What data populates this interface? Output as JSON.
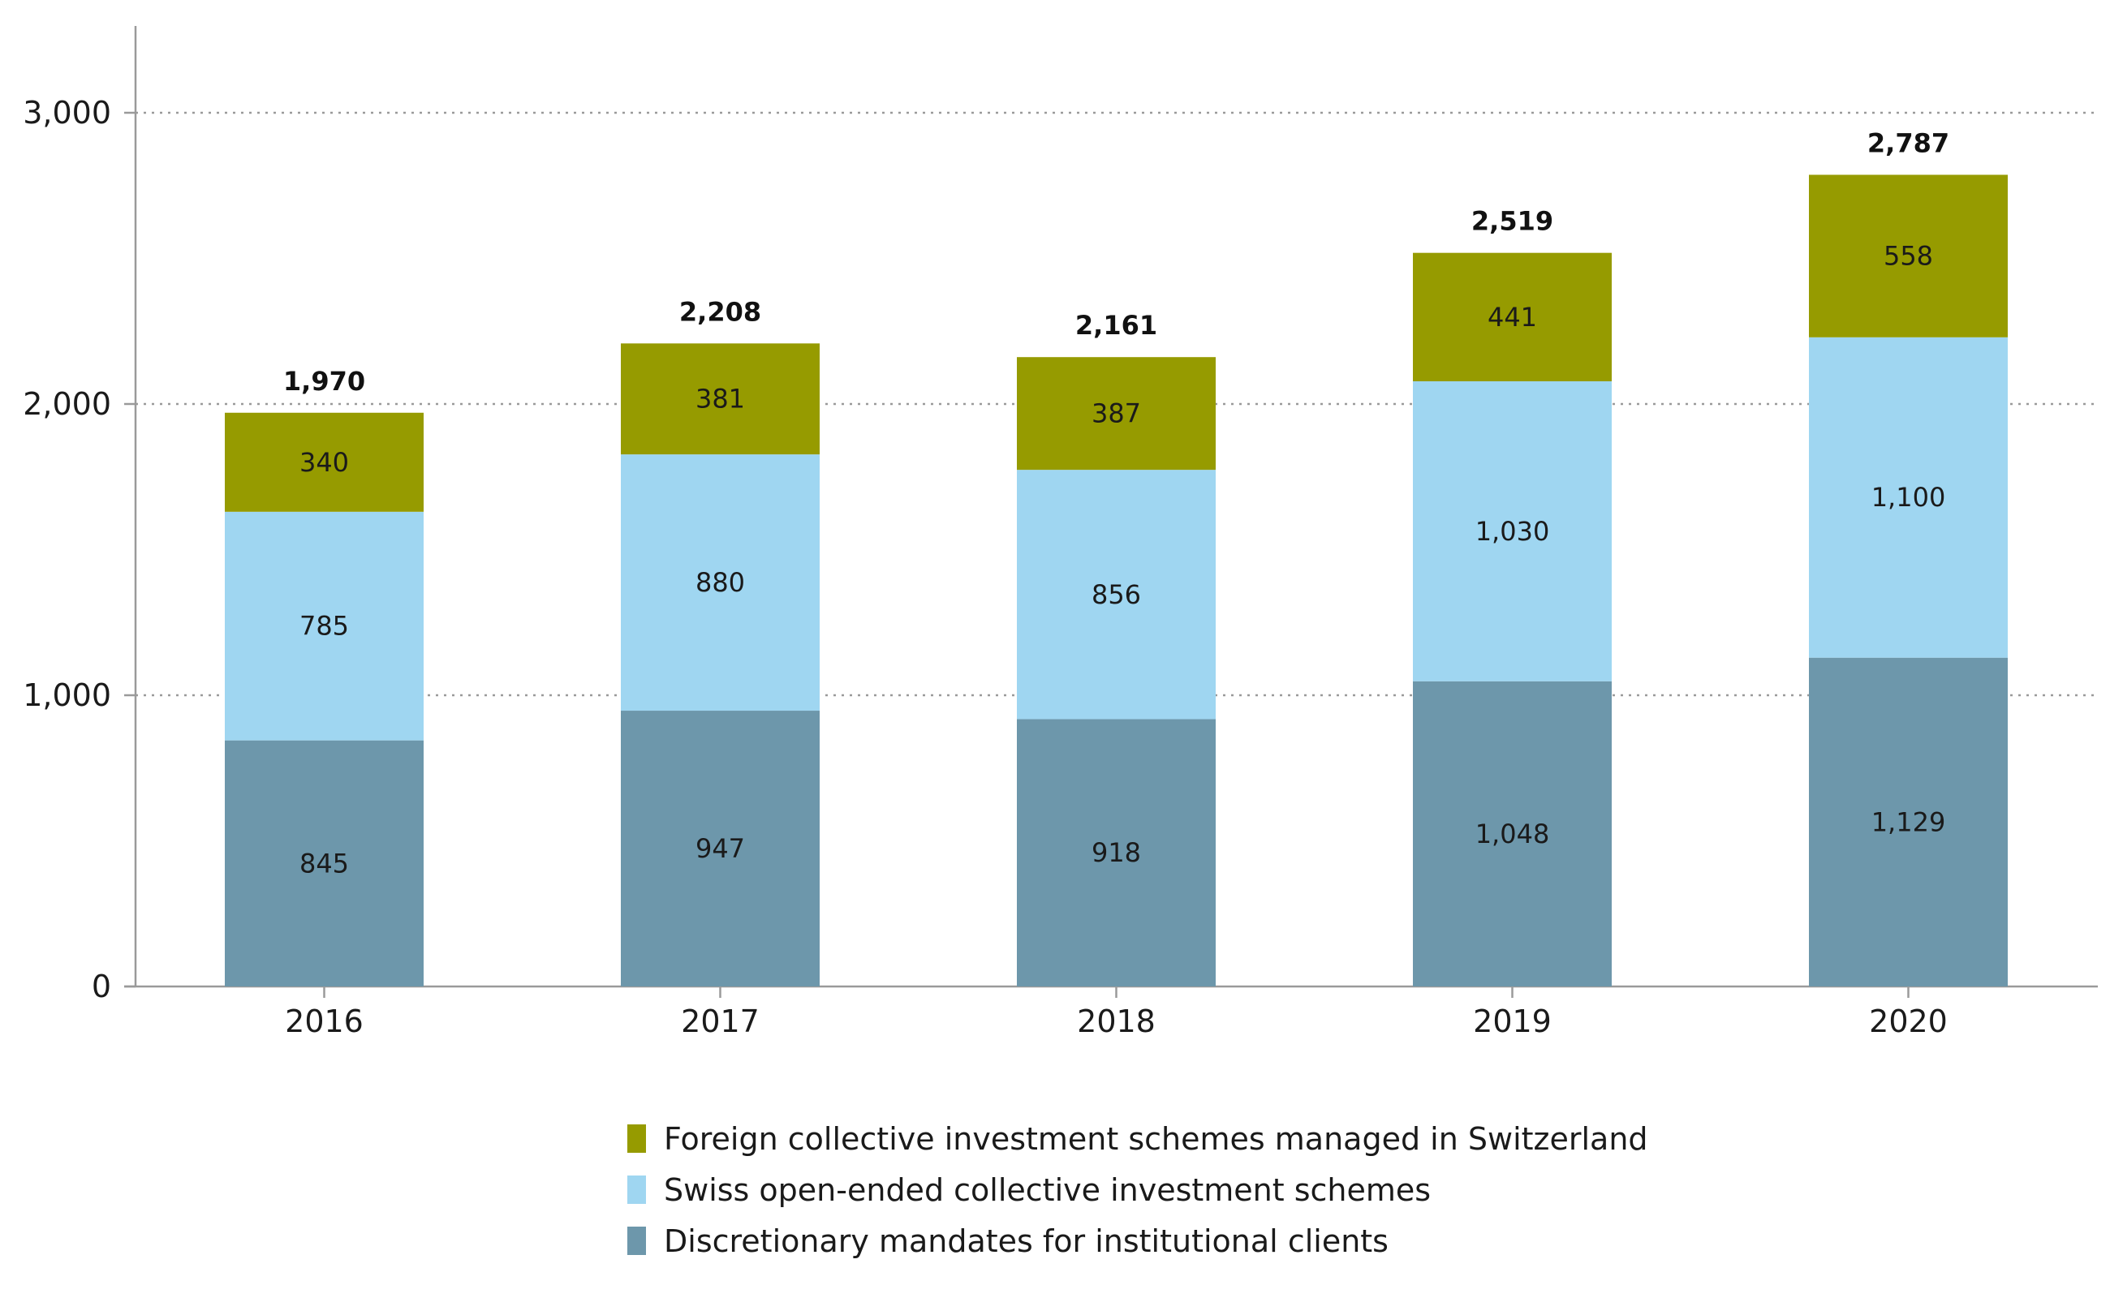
{
  "colors": {
    "foreign": "#969b00",
    "swiss": "#9fd6f1",
    "discretionary": "#6d97ab",
    "axis": "#9a9a9a",
    "grid": "#9a9a9a"
  },
  "legend": [
    {
      "name": "Foreign collective investment schemes managed in Switzerland",
      "color": "#969b00"
    },
    {
      "name": "Swiss open-ended collective investment schemes",
      "color": "#9fd6f1"
    },
    {
      "name": "Discretionary mandates for institutional clients",
      "color": "#6d97ab"
    }
  ],
  "chart_data": {
    "type": "bar",
    "stacked": true,
    "categories": [
      "2016",
      "2017",
      "2018",
      "2019",
      "2020"
    ],
    "series": [
      {
        "name": "Discretionary mandates for institutional clients",
        "values": [
          845,
          947,
          918,
          1048,
          1129
        ],
        "labels": [
          "845",
          "947",
          "918",
          "1,048",
          "1,129"
        ]
      },
      {
        "name": "Swiss open-ended collective investment schemes",
        "values": [
          785,
          880,
          856,
          1030,
          1100
        ],
        "labels": [
          "785",
          "880",
          "856",
          "1,030",
          "1,100"
        ]
      },
      {
        "name": "Foreign collective investment schemes managed in Switzerland",
        "values": [
          340,
          381,
          387,
          441,
          558
        ],
        "labels": [
          "340",
          "381",
          "387",
          "441",
          "558"
        ]
      }
    ],
    "totals": [
      1970,
      2208,
      2161,
      2519,
      2787
    ],
    "total_labels": [
      "1,970",
      "2,208",
      "2,161",
      "2,519",
      "2,787"
    ],
    "ylim": [
      0,
      3300
    ],
    "yticks": [
      0,
      1000,
      2000,
      3000
    ],
    "ytick_labels": [
      "0",
      "1,000",
      "2,000",
      "3,000"
    ],
    "grid": "horizontal dotted",
    "legend_position": "bottom-center",
    "title": "",
    "xlabel": "",
    "ylabel": ""
  }
}
